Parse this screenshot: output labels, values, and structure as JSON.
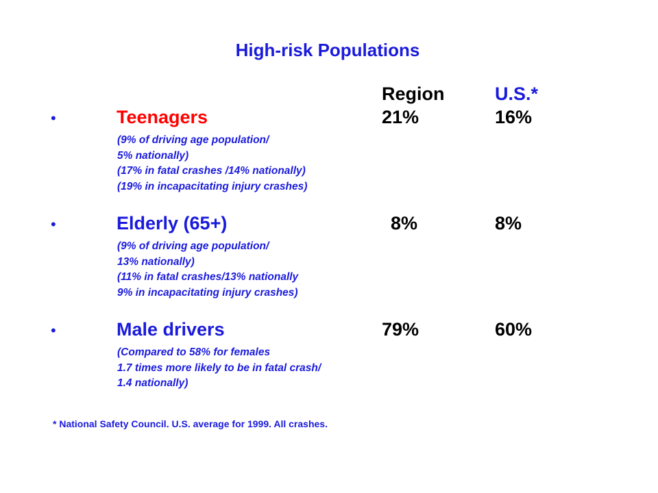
{
  "header": {
    "title": "High-risk Populations",
    "columns": [
      "Region",
      "U.S.*"
    ]
  },
  "items": [
    {
      "bullet": "•",
      "label": "Teenagers",
      "region": "21%",
      "us": "16%",
      "notes": [
        "(9% of driving age population/",
        "5% nationally)",
        "(17% in fatal crashes /14% nationally)",
        "(19% in incapacitating injury crashes)"
      ]
    },
    {
      "bullet": "•",
      "label": "Elderly (65+)",
      "region": "8%",
      "us": "8%",
      "notes": [
        "(9% of driving age population/",
        "13% nationally)",
        "(11% in fatal crashes/13% nationally",
        "9% in incapacitating injury crashes)"
      ]
    },
    {
      "bullet": "•",
      "label": "Male drivers",
      "region": "79%",
      "us": "60%",
      "notes": [
        "(Compared to 58% for females",
        "1.7 times more likely to be in fatal crash/",
        "1.4 nationally)"
      ]
    }
  ],
  "footnote": "* National Safety Council.  U.S. average for 1999.  All crashes."
}
